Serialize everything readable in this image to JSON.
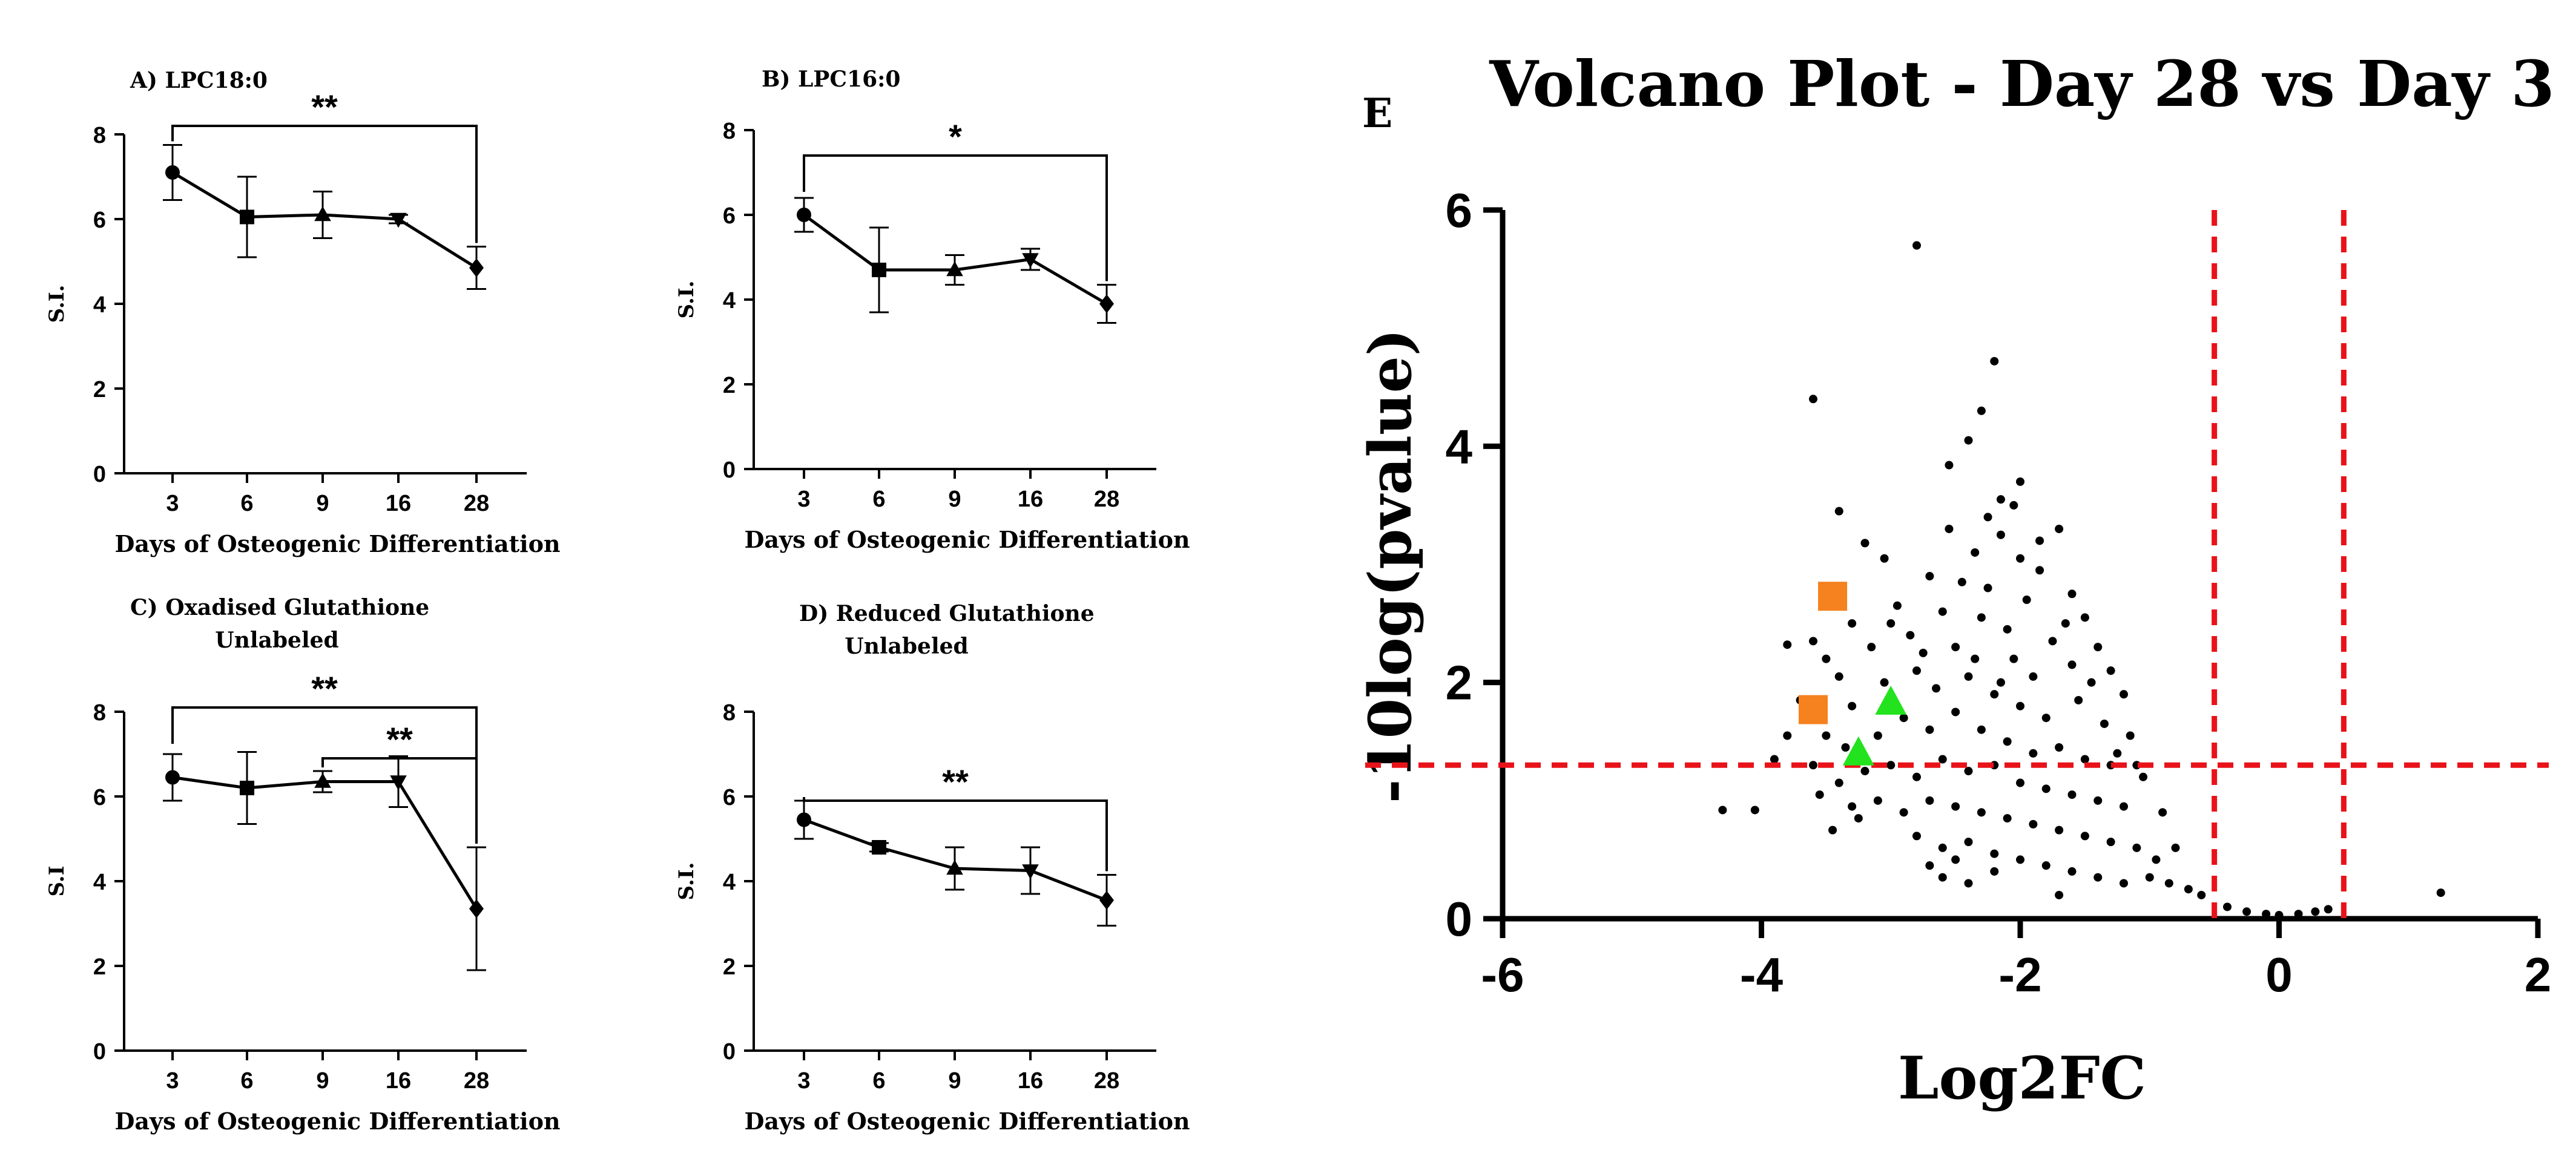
{
  "chart_data": [
    {
      "id": "A",
      "type": "line",
      "title": "A) LPC18:0",
      "subtitle": "",
      "xlabel": "Days of  Osteogenic  Differentiation",
      "ylabel": "S.I.",
      "categories": [
        "3",
        "6",
        "9",
        "16",
        "28"
      ],
      "values": [
        7.1,
        6.05,
        6.1,
        6.0,
        4.85
      ],
      "errors": [
        0.65,
        0.95,
        0.55,
        0.1,
        0.5
      ],
      "markers": [
        "circle",
        "square",
        "triangle-up",
        "triangle-down",
        "diamond"
      ],
      "ylim": [
        0,
        8
      ],
      "yticks": [
        "0",
        "2",
        "4",
        "6",
        "8"
      ],
      "significance": [
        {
          "from": 0,
          "to": 4,
          "label": "**",
          "level": 8.2
        }
      ]
    },
    {
      "id": "B",
      "type": "line",
      "title": "B) LPC16:0",
      "subtitle": "",
      "xlabel": "Days of  Osteogenic  Differentiation",
      "ylabel": "S.I.",
      "categories": [
        "3",
        "6",
        "9",
        "16",
        "28"
      ],
      "values": [
        6.0,
        4.7,
        4.7,
        4.95,
        3.9
      ],
      "errors": [
        0.4,
        1.0,
        0.35,
        0.25,
        0.45
      ],
      "markers": [
        "circle",
        "square",
        "triangle-up",
        "triangle-down",
        "diamond"
      ],
      "ylim": [
        0,
        8
      ],
      "yticks": [
        "0",
        "2",
        "4",
        "6",
        "8"
      ],
      "significance": [
        {
          "from": 0,
          "to": 4,
          "label": "*",
          "level": 7.4
        }
      ]
    },
    {
      "id": "C",
      "type": "line",
      "title": "C) Oxadised Glutathione",
      "subtitle": "Unlabeled",
      "xlabel": "Days of  Osteogenic  Differentiation",
      "ylabel": "S.I",
      "categories": [
        "3",
        "6",
        "9",
        "16",
        "28"
      ],
      "values": [
        6.45,
        6.2,
        6.35,
        6.35,
        3.35
      ],
      "errors": [
        0.55,
        0.85,
        0.25,
        0.6,
        1.45
      ],
      "markers": [
        "circle",
        "square",
        "triangle-up",
        "triangle-down",
        "diamond"
      ],
      "ylim": [
        0,
        8
      ],
      "yticks": [
        "0",
        "2",
        "4",
        "6",
        "8"
      ],
      "significance": [
        {
          "from": 0,
          "to": 4,
          "label": "**",
          "level": 8.1
        },
        {
          "from": 2,
          "to": 4,
          "label": "**",
          "level": 6.9
        }
      ]
    },
    {
      "id": "D",
      "type": "line",
      "title": "D) Reduced Glutathione",
      "subtitle": "Unlabeled",
      "xlabel": "Days of  Osteogenic  Differentiation",
      "ylabel": "S.I.",
      "categories": [
        "3",
        "6",
        "9",
        "16",
        "28"
      ],
      "values": [
        5.45,
        4.8,
        4.3,
        4.25,
        3.55
      ],
      "errors": [
        0.45,
        0.1,
        0.5,
        0.55,
        0.6
      ],
      "markers": [
        "circle",
        "square",
        "triangle-up",
        "triangle-down",
        "diamond"
      ],
      "ylim": [
        0,
        8
      ],
      "yticks": [
        "0",
        "2",
        "4",
        "6",
        "8"
      ],
      "significance": [
        {
          "from": 0,
          "to": 4,
          "label": "**",
          "level": 5.9
        }
      ]
    },
    {
      "id": "E",
      "type": "scatter",
      "panel_label": "E",
      "title": "Volcano Plot - Day 28 vs  Day 3",
      "xlabel": "Log2FC",
      "ylabel": "-10log(pvalue)",
      "xlim": [
        -6,
        2
      ],
      "ylim": [
        0,
        6
      ],
      "xticks": [
        "-6",
        "-4",
        "-2",
        "0",
        "2"
      ],
      "yticks": [
        "0",
        "2",
        "4",
        "6"
      ],
      "thresholds": {
        "vertical": [
          -0.5,
          0.5
        ],
        "horizontal": 1.3
      },
      "threshold_color": "#e8131a",
      "point_color": "#000000",
      "highlight_color_square": "#f5821f",
      "highlight_color_triangle": "#22e31d",
      "highlights": [
        {
          "x": -3.45,
          "y": 2.73,
          "shape": "square"
        },
        {
          "x": -3.6,
          "y": 1.77,
          "shape": "square"
        },
        {
          "x": -3.0,
          "y": 1.83,
          "shape": "triangle"
        },
        {
          "x": -3.25,
          "y": 1.4,
          "shape": "triangle"
        }
      ],
      "points": [
        [
          -3.6,
          4.4
        ],
        [
          -2.8,
          5.7
        ],
        [
          -2.2,
          4.72
        ],
        [
          -2.3,
          4.3
        ],
        [
          -2.4,
          4.05
        ],
        [
          -2.55,
          3.84
        ],
        [
          -2.0,
          3.7
        ],
        [
          -2.15,
          3.55
        ],
        [
          -1.7,
          3.3
        ],
        [
          -3.4,
          3.45
        ],
        [
          -3.2,
          3.18
        ],
        [
          -3.05,
          3.05
        ],
        [
          -2.7,
          2.9
        ],
        [
          -2.35,
          3.1
        ],
        [
          -2.0,
          3.05
        ],
        [
          -1.85,
          2.95
        ],
        [
          -1.6,
          2.75
        ],
        [
          -1.5,
          2.55
        ],
        [
          -3.6,
          2.35
        ],
        [
          -3.3,
          2.5
        ],
        [
          -3.5,
          2.2
        ],
        [
          -2.95,
          2.65
        ],
        [
          -2.6,
          2.6
        ],
        [
          -2.25,
          2.8
        ],
        [
          -1.95,
          2.7
        ],
        [
          -2.1,
          2.45
        ],
        [
          -1.75,
          2.35
        ],
        [
          -1.4,
          2.3
        ],
        [
          -1.3,
          2.1
        ],
        [
          -3.8,
          2.32
        ],
        [
          -3.7,
          1.85
        ],
        [
          -3.4,
          2.05
        ],
        [
          -3.15,
          2.3
        ],
        [
          -2.85,
          2.4
        ],
        [
          -2.5,
          2.3
        ],
        [
          -2.3,
          2.55
        ],
        [
          -2.05,
          2.2
        ],
        [
          -1.9,
          2.05
        ],
        [
          -1.6,
          2.15
        ],
        [
          -1.2,
          1.9
        ],
        [
          -3.5,
          1.55
        ],
        [
          -3.3,
          1.8
        ],
        [
          -3.05,
          2.0
        ],
        [
          -2.8,
          2.1
        ],
        [
          -2.65,
          1.95
        ],
        [
          -2.4,
          2.05
        ],
        [
          -2.2,
          1.9
        ],
        [
          -2.0,
          1.8
        ],
        [
          -1.8,
          1.7
        ],
        [
          -1.55,
          1.85
        ],
        [
          -1.35,
          1.65
        ],
        [
          -1.15,
          1.55
        ],
        [
          -3.6,
          1.3
        ],
        [
          -3.35,
          1.45
        ],
        [
          -3.1,
          1.55
        ],
        [
          -2.9,
          1.7
        ],
        [
          -2.7,
          1.6
        ],
        [
          -2.5,
          1.75
        ],
        [
          -2.3,
          1.6
        ],
        [
          -2.1,
          1.5
        ],
        [
          -1.9,
          1.4
        ],
        [
          -1.7,
          1.45
        ],
        [
          -1.5,
          1.35
        ],
        [
          -1.3,
          1.3
        ],
        [
          -1.05,
          1.2
        ],
        [
          -3.4,
          1.15
        ],
        [
          -3.2,
          1.25
        ],
        [
          -3.0,
          1.3
        ],
        [
          -2.8,
          1.2
        ],
        [
          -2.6,
          1.35
        ],
        [
          -2.4,
          1.25
        ],
        [
          -2.2,
          1.3
        ],
        [
          -2.0,
          1.15
        ],
        [
          -1.8,
          1.1
        ],
        [
          -1.6,
          1.05
        ],
        [
          -1.4,
          1.0
        ],
        [
          -1.2,
          0.95
        ],
        [
          -3.3,
          0.95
        ],
        [
          -3.1,
          1.0
        ],
        [
          -2.9,
          0.9
        ],
        [
          -2.7,
          1.0
        ],
        [
          -2.5,
          0.95
        ],
        [
          -2.3,
          0.9
        ],
        [
          -2.1,
          0.85
        ],
        [
          -1.9,
          0.8
        ],
        [
          -1.7,
          0.75
        ],
        [
          -1.5,
          0.7
        ],
        [
          -1.3,
          0.65
        ],
        [
          -1.1,
          0.6
        ],
        [
          -0.95,
          0.5
        ],
        [
          -2.8,
          0.7
        ],
        [
          -2.6,
          0.6
        ],
        [
          -2.4,
          0.65
        ],
        [
          -2.2,
          0.55
        ],
        [
          -2.0,
          0.5
        ],
        [
          -1.8,
          0.45
        ],
        [
          -1.6,
          0.4
        ],
        [
          -1.4,
          0.35
        ],
        [
          -1.2,
          0.3
        ],
        [
          -1.0,
          0.35
        ],
        [
          -0.85,
          0.3
        ],
        [
          -0.7,
          0.25
        ],
        [
          -0.6,
          0.2
        ],
        [
          -2.6,
          0.35
        ],
        [
          -2.4,
          0.3
        ],
        [
          -2.2,
          0.4
        ],
        [
          -2.5,
          0.5
        ],
        [
          -2.7,
          0.45
        ],
        [
          -1.7,
          0.2
        ],
        [
          -0.4,
          0.1
        ],
        [
          -0.25,
          0.06
        ],
        [
          -0.1,
          0.04
        ],
        [
          0.0,
          0.03
        ],
        [
          0.15,
          0.04
        ],
        [
          0.28,
          0.06
        ],
        [
          0.38,
          0.08
        ],
        [
          1.25,
          0.22
        ],
        [
          -4.3,
          0.92
        ],
        [
          -4.05,
          0.92
        ],
        [
          -3.9,
          1.35
        ],
        [
          -3.8,
          1.55
        ],
        [
          -3.45,
          0.75
        ],
        [
          -3.55,
          1.05
        ],
        [
          -3.25,
          0.85
        ],
        [
          -2.45,
          2.85
        ],
        [
          -2.15,
          3.25
        ],
        [
          -2.25,
          3.4
        ],
        [
          -2.05,
          3.5
        ],
        [
          -1.85,
          3.2
        ],
        [
          -2.55,
          3.3
        ],
        [
          -2.35,
          2.2
        ],
        [
          -2.15,
          2.0
        ],
        [
          -1.65,
          2.5
        ],
        [
          -1.45,
          2.0
        ],
        [
          -1.25,
          1.4
        ],
        [
          -1.1,
          1.3
        ],
        [
          -0.9,
          0.9
        ],
        [
          -0.8,
          0.6
        ],
        [
          -3.0,
          2.5
        ],
        [
          -2.75,
          2.25
        ]
      ]
    }
  ]
}
